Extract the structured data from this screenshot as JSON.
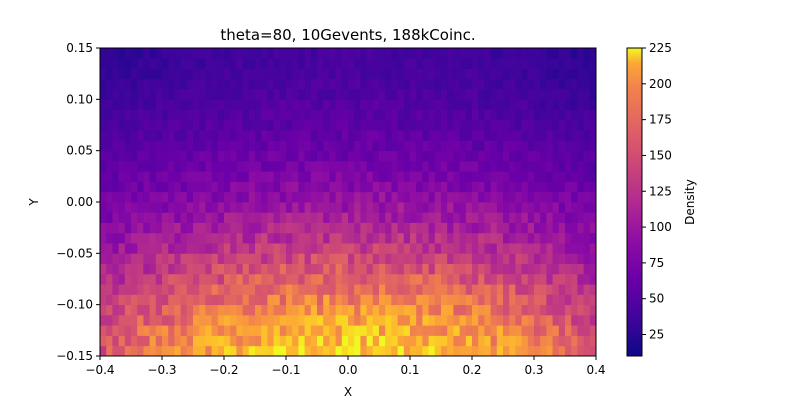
{
  "chart_data": {
    "type": "heatmap",
    "title": "theta=80, 10Gevents, 188kCoinc.",
    "xlabel": "X",
    "ylabel": "Y",
    "xlim": [
      -0.4,
      0.4
    ],
    "ylim": [
      -0.15,
      0.15
    ],
    "xticks": [
      "−0.4",
      "−0.3",
      "−0.2",
      "−0.1",
      "0.0",
      "0.1",
      "0.2",
      "0.3",
      "0.4"
    ],
    "yticks": [
      "−0.15",
      "−0.10",
      "−0.05",
      "0.00",
      "0.05",
      "0.10",
      "0.15"
    ],
    "colormap": "plasma",
    "colorbar": {
      "label": "Density",
      "range": [
        10,
        225
      ],
      "ticks": [
        "25",
        "50",
        "75",
        "100",
        "125",
        "150",
        "175",
        "200",
        "225"
      ]
    },
    "grid": false,
    "bins": {
      "x": 80,
      "y": 30
    },
    "density_profile_by_y": {
      "y": [
        -0.145,
        -0.125,
        -0.105,
        -0.085,
        -0.065,
        -0.045,
        -0.025,
        -0.005,
        0.015,
        0.035,
        0.055,
        0.075,
        0.095,
        0.115,
        0.135,
        0.145
      ],
      "center_density": [
        205,
        190,
        170,
        150,
        130,
        112,
        96,
        82,
        70,
        60,
        52,
        46,
        42,
        38,
        35,
        34
      ],
      "edge_density": [
        125,
        118,
        108,
        98,
        88,
        78,
        68,
        60,
        52,
        46,
        40,
        35,
        30,
        26,
        24,
        22
      ]
    }
  }
}
